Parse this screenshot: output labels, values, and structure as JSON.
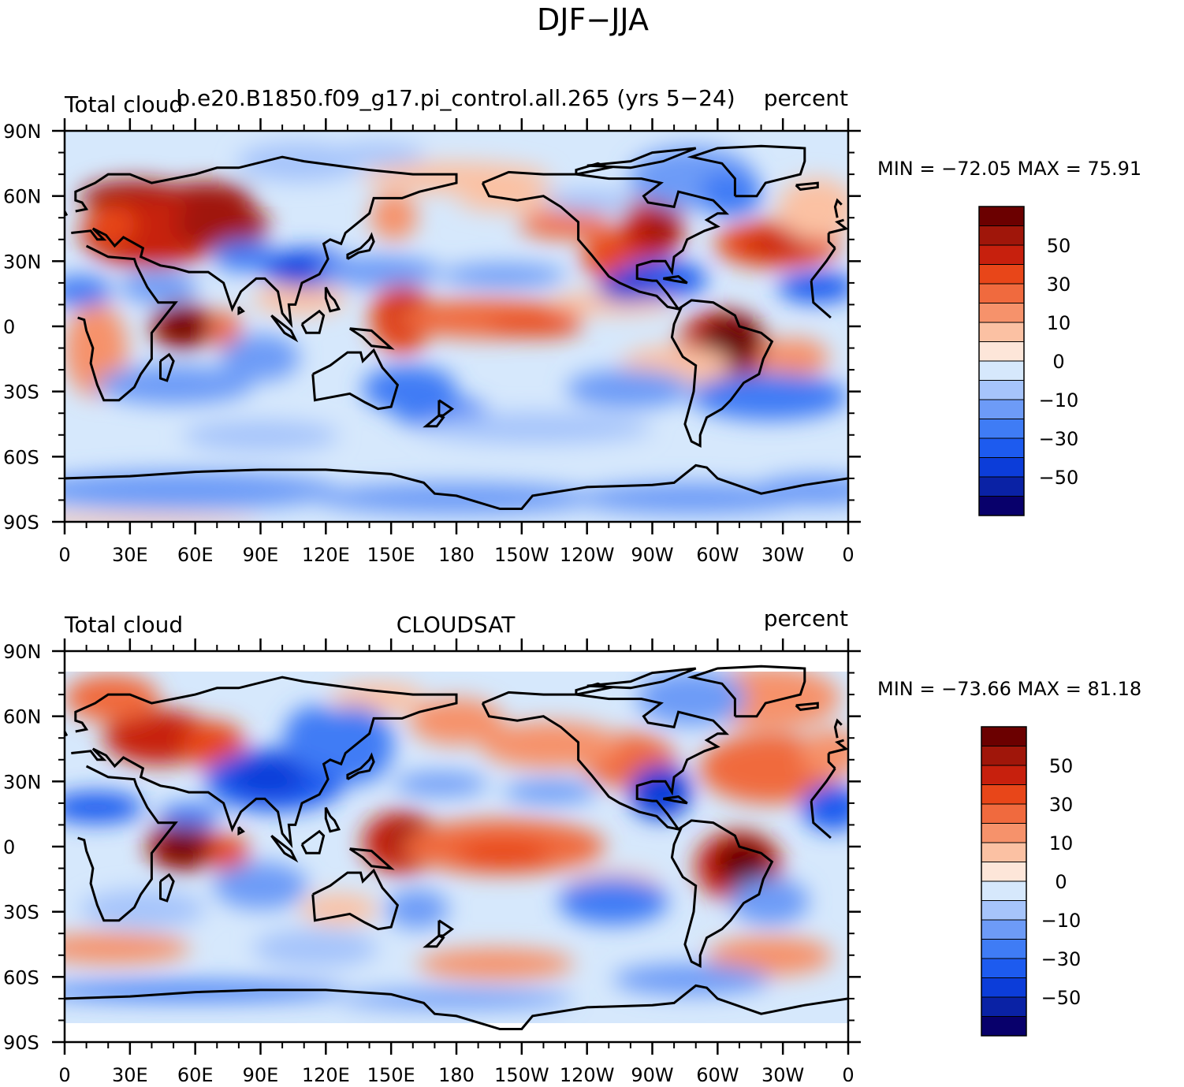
{
  "figure_title": "DJF−JJA",
  "colors": {
    "levels": [
      "#08006b",
      "#0a22a5",
      "#0c3dd9",
      "#1d5bef",
      "#3f7cf5",
      "#6d9bf7",
      "#a6c4fb",
      "#d6e8fc",
      "#fde6d9",
      "#fbc1a3",
      "#f6926b",
      "#f06a3e",
      "#e84619",
      "#c7200d",
      "#a0160a",
      "#6b0000"
    ],
    "land_outline": "#000000"
  },
  "panels": [
    {
      "label_left": "Total cloud",
      "label_center": "b.e20.B1850.f09_g17.pi_control.all.265 (yrs 5−24)",
      "label_right": "percent",
      "min_max_text": "MIN = −72.05  MAX =   75.91",
      "colorbar_labels": [
        "50",
        "30",
        "10",
        "0",
        "−10",
        "−30",
        "−50"
      ],
      "lat_ticks": [
        "90N",
        "60N",
        "30N",
        "0",
        "30S",
        "60S",
        "90S"
      ],
      "lon_ticks": [
        "0",
        "30E",
        "60E",
        "90E",
        "120E",
        "150E",
        "180",
        "150W",
        "120W",
        "90W",
        "60W",
        "30W",
        "0"
      ],
      "data_extent": "full"
    },
    {
      "label_left": "Total cloud",
      "label_center": "CLOUDSAT",
      "label_right": "percent",
      "min_max_text": "MIN = −73.66  MAX =   81.18",
      "colorbar_labels": [
        "50",
        "30",
        "10",
        "0",
        "−10",
        "−30",
        "−50"
      ],
      "lat_ticks": [
        "90N",
        "60N",
        "30N",
        "0",
        "30S",
        "60S",
        "90S"
      ],
      "lon_ticks": [
        "0",
        "30E",
        "60E",
        "90E",
        "120E",
        "150E",
        "180",
        "150W",
        "120W",
        "90W",
        "60W",
        "30W",
        "0"
      ],
      "data_extent": "82S-82N"
    }
  ]
}
